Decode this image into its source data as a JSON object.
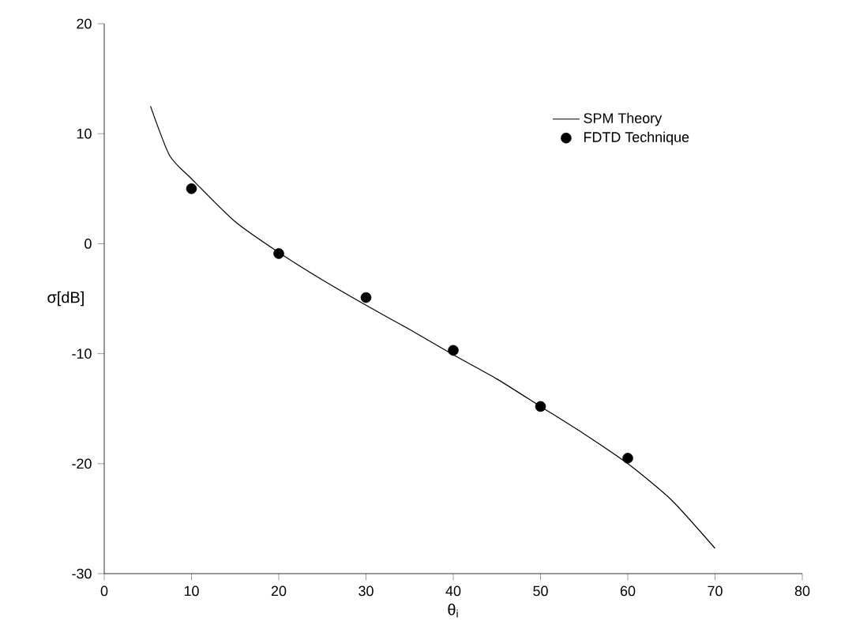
{
  "chart_data": {
    "type": "line",
    "xlabel": "θ$_{i}$",
    "ylabel": "σ[dB]",
    "xlim": [
      0,
      80
    ],
    "ylim": [
      -30,
      20
    ],
    "xticks": [
      0,
      10,
      20,
      30,
      40,
      50,
      60,
      70,
      80
    ],
    "yticks": [
      -30,
      -20,
      -10,
      0,
      10,
      20
    ],
    "legend": "top right",
    "grid": false,
    "series": [
      {
        "name": "SPM Theory",
        "color": "#000000",
        "marker": "none",
        "x": [
          5.3,
          7.5,
          10,
          15,
          20,
          25,
          30,
          35,
          40,
          45,
          50,
          55,
          60,
          65,
          70
        ],
        "values": [
          12.5,
          8,
          5.9,
          2,
          -0.8,
          -3.3,
          -5.6,
          -7.8,
          -10.1,
          -12.3,
          -14.8,
          -17.3,
          -20,
          -23.3,
          -27.7
        ]
      },
      {
        "name": "FDTD Technique",
        "type": "scatter",
        "color": "#000000",
        "marker": "circle",
        "x": [
          10,
          20,
          30,
          40,
          50,
          60
        ],
        "values": [
          5,
          -0.9,
          -4.9,
          -9.7,
          -14.8,
          -19.5
        ]
      }
    ]
  }
}
